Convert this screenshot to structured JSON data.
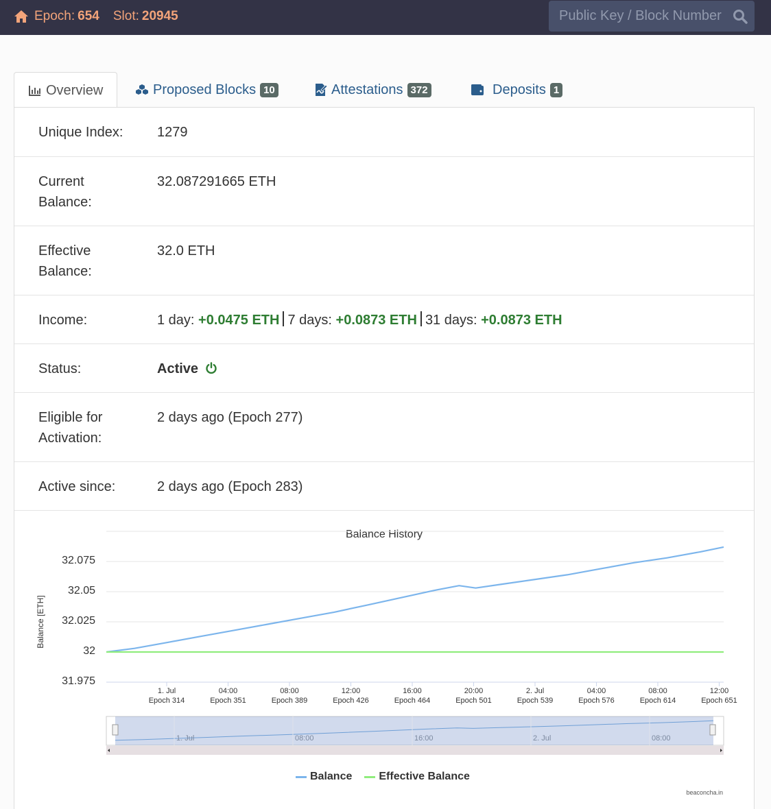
{
  "navbar": {
    "epoch_label": "Epoch:",
    "epoch_value": "654",
    "slot_label": "Slot:",
    "slot_value": "20945",
    "search_placeholder": "Public Key / Block Number"
  },
  "tabs": [
    {
      "label": "Overview",
      "icon": "chart-icon",
      "active": true
    },
    {
      "label": "Proposed Blocks",
      "icon": "cubes-icon",
      "badge": "10"
    },
    {
      "label": "Attestations",
      "icon": "signature-icon",
      "badge": "372"
    },
    {
      "label": "Deposits",
      "icon": "wallet-icon",
      "badge": "1"
    }
  ],
  "details": {
    "unique_index": {
      "key": "Unique Index:",
      "value": "1279"
    },
    "current_balance": {
      "key": "Current Balance:",
      "value": "32.087291665 ETH"
    },
    "effective_balance": {
      "key": "Effective Balance:",
      "value": "32.0 ETH"
    },
    "income": {
      "key": "Income:",
      "d1_label": "1 day:",
      "d1_value": "+0.0475 ETH",
      "d7_label": "7 days:",
      "d7_value": "+0.0873 ETH",
      "d31_label": "31 days:",
      "d31_value": "+0.0873 ETH"
    },
    "status": {
      "key": "Status:",
      "value": "Active"
    },
    "eligible": {
      "key": "Eligible for Activation:",
      "value": "2 days ago (Epoch 277)"
    },
    "active_since": {
      "key": "Active since:",
      "value": "2 days ago (Epoch 283)"
    }
  },
  "chart_data": {
    "type": "line",
    "title": "Balance History",
    "ylabel": "Balance [ETH]",
    "ylim": [
      31.975,
      32.1
    ],
    "yticks": [
      "32.075",
      "32.05",
      "32.025",
      "32",
      "31.975"
    ],
    "xticks": [
      {
        "time": "1. Jul",
        "epoch": "Epoch 314"
      },
      {
        "time": "04:00",
        "epoch": "Epoch 351"
      },
      {
        "time": "08:00",
        "epoch": "Epoch 389"
      },
      {
        "time": "12:00",
        "epoch": "Epoch 426"
      },
      {
        "time": "16:00",
        "epoch": "Epoch 464"
      },
      {
        "time": "20:00",
        "epoch": "Epoch 501"
      },
      {
        "time": "2. Jul",
        "epoch": "Epoch 539"
      },
      {
        "time": "04:00",
        "epoch": "Epoch 576"
      },
      {
        "time": "08:00",
        "epoch": "Epoch 614"
      },
      {
        "time": "12:00",
        "epoch": "Epoch 651"
      }
    ],
    "navigator_labels": [
      "1. Jul",
      "08:00",
      "16:00",
      "2. Jul",
      "08:00"
    ],
    "series": [
      {
        "name": "Balance",
        "color": "#7cb5ec",
        "x_epochs": [
          283,
          300,
          320,
          340,
          360,
          380,
          400,
          420,
          440,
          460,
          480,
          495,
          505,
          520,
          540,
          560,
          580,
          600,
          620,
          640,
          654
        ],
        "values": [
          32.0,
          32.003,
          32.008,
          32.013,
          32.018,
          32.023,
          32.028,
          32.033,
          32.039,
          32.045,
          32.051,
          32.055,
          32.053,
          32.056,
          32.06,
          32.064,
          32.069,
          32.074,
          32.078,
          32.083,
          32.087
        ]
      },
      {
        "name": "Effective Balance",
        "color": "#90ed7d",
        "x_epochs": [
          283,
          654
        ],
        "values": [
          32.0,
          32.0
        ]
      }
    ],
    "legend_position": "bottom",
    "credits": "beaconcha.in"
  }
}
